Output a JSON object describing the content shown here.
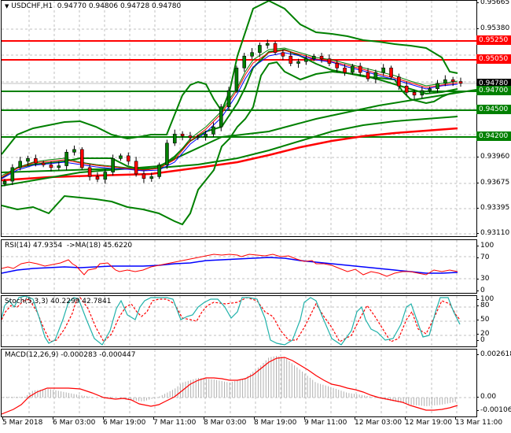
{
  "chart_data": [
    {
      "type": "line",
      "panel": "main",
      "title": "USDCHF,H1 0.94770 0.94806 0.94728 0.94780",
      "symbol": "USDCHF",
      "timeframe": "H1",
      "ohlc": {
        "open": "0.94770",
        "high": "0.94806",
        "low": "0.94728",
        "close": "0.94780"
      },
      "price_axis_ticks": [
        "0.95665",
        "0.95380",
        "0.95250",
        "0.95050",
        "0.94780",
        "0.94700",
        "0.94500",
        "0.94200",
        "0.93960",
        "0.93675",
        "0.93395",
        "0.93110"
      ],
      "ylim": [
        0.9311,
        0.95665
      ],
      "horizontal_levels": [
        {
          "price": "0.95250",
          "color": "#ff0000",
          "label": "0.95250"
        },
        {
          "price": "0.95050",
          "color": "#ff0000",
          "label": "0.95050"
        },
        {
          "price": "0.94700",
          "color": "#008000",
          "label": "0.94700"
        },
        {
          "price": "0.94500",
          "color": "#008000",
          "label": "0.94500"
        },
        {
          "price": "0.94200",
          "color": "#008000",
          "label": "0.94200"
        }
      ],
      "current_price": {
        "price": "0.94780",
        "color": "#000000",
        "label": "0.94780"
      },
      "series": [
        {
          "name": "Close (approx)",
          "values": [
            0.937,
            0.9385,
            0.9392,
            0.9395,
            0.939,
            0.9388,
            0.9385,
            0.9387,
            0.9402,
            0.9405,
            0.9385,
            0.9375,
            0.9372,
            0.938,
            0.9395,
            0.9398,
            0.9392,
            0.9378,
            0.9373,
            0.9375,
            0.9388,
            0.9412,
            0.9422,
            0.942,
            0.9418,
            0.9419,
            0.9422,
            0.943,
            0.9452,
            0.947,
            0.9495,
            0.9508,
            0.9512,
            0.952,
            0.9522,
            0.9512,
            0.9508,
            0.95,
            0.9502,
            0.9505,
            0.9508,
            0.9505,
            0.95,
            0.9495,
            0.949,
            0.9497,
            0.949,
            0.9483,
            0.949,
            0.9495,
            0.9485,
            0.9475,
            0.9468,
            0.9465,
            0.947,
            0.9472,
            0.9478,
            0.9482,
            0.948,
            0.9478
          ]
        },
        {
          "name": "Bollinger Upper",
          "color": "#008000"
        },
        {
          "name": "Bollinger Lower",
          "color": "#008000"
        },
        {
          "name": "MA long (red)",
          "color": "#ff0000"
        },
        {
          "name": "MA long (green)",
          "color": "#008000"
        }
      ]
    },
    {
      "type": "line",
      "panel": "rsi",
      "title": "RSI(14) 47.9354 ->MA(18) 45.6220",
      "ticks": [
        "100",
        "70",
        "30",
        "0"
      ],
      "ylim": [
        0,
        100
      ],
      "series": [
        {
          "name": "RSI(14)",
          "color": "#ff0000",
          "last": 47.9354
        },
        {
          "name": "MA(18)",
          "color": "#0000ff",
          "last": 45.622
        }
      ]
    },
    {
      "type": "line",
      "panel": "stochastic",
      "title": "Stoch(5,3,3) 40.2299 42.7841",
      "ticks": [
        "100",
        "80",
        "50",
        "20",
        "0"
      ],
      "ylim": [
        0,
        100
      ],
      "series": [
        {
          "name": "%K",
          "color": "#20b2aa",
          "last": 40.2299
        },
        {
          "name": "%D",
          "color": "#ff0000",
          "last": 42.7841
        }
      ]
    },
    {
      "type": "bar",
      "panel": "macd",
      "title": "MACD(12,26,9) -0.000283 -0.000447",
      "ticks": [
        "0.002618",
        "0.00",
        "-0.001061"
      ],
      "ylim": [
        -0.001061,
        0.002618
      ],
      "series": [
        {
          "name": "MACD histogram",
          "color": "#c0c0c0",
          "last": -0.000283
        },
        {
          "name": "Signal",
          "color": "#ff0000",
          "last": -0.000447
        }
      ]
    }
  ],
  "time_axis": [
    "5 Mar 2018",
    "6 Mar 03:00",
    "6 Mar 19:00",
    "7 Mar 11:00",
    "8 Mar 03:00",
    "8 Mar 19:00",
    "9 Mar 11:00",
    "12 Mar 03:00",
    "12 Mar 19:00",
    "13 Mar 11:00"
  ],
  "header": {
    "title": "USDCHF,H1  0.94770 0.94806 0.94728 0.94780",
    "collapse_icon": "▼"
  },
  "rsi": {
    "title": "RSI(14) 47.9354  ->MA(18) 45.6220",
    "ticks": [
      "100",
      "70",
      "30",
      "0"
    ]
  },
  "stoch": {
    "title": "Stoch(5,3,3) 40.2299 42.7841",
    "ticks": [
      "100",
      "80",
      "50",
      "20",
      "0"
    ]
  },
  "macd": {
    "title": "MACD(12,26,9) -0.000283 -0.000447",
    "ticks": [
      "0.002618",
      "0.00",
      "-0.001061"
    ]
  },
  "price_axis": {
    "ticks": [
      "0.95665",
      "0.95380",
      "0.93960",
      "0.93675",
      "0.93395",
      "0.93110"
    ],
    "tags": [
      {
        "label": "0.95250",
        "color": "#ff0000"
      },
      {
        "label": "0.95050",
        "color": "#ff0000"
      },
      {
        "label": "0.94780",
        "color": "#000000"
      },
      {
        "label": "0.94700",
        "color": "#008000"
      },
      {
        "label": "0.94500",
        "color": "#008000"
      },
      {
        "label": "0.94200",
        "color": "#008000"
      }
    ]
  }
}
